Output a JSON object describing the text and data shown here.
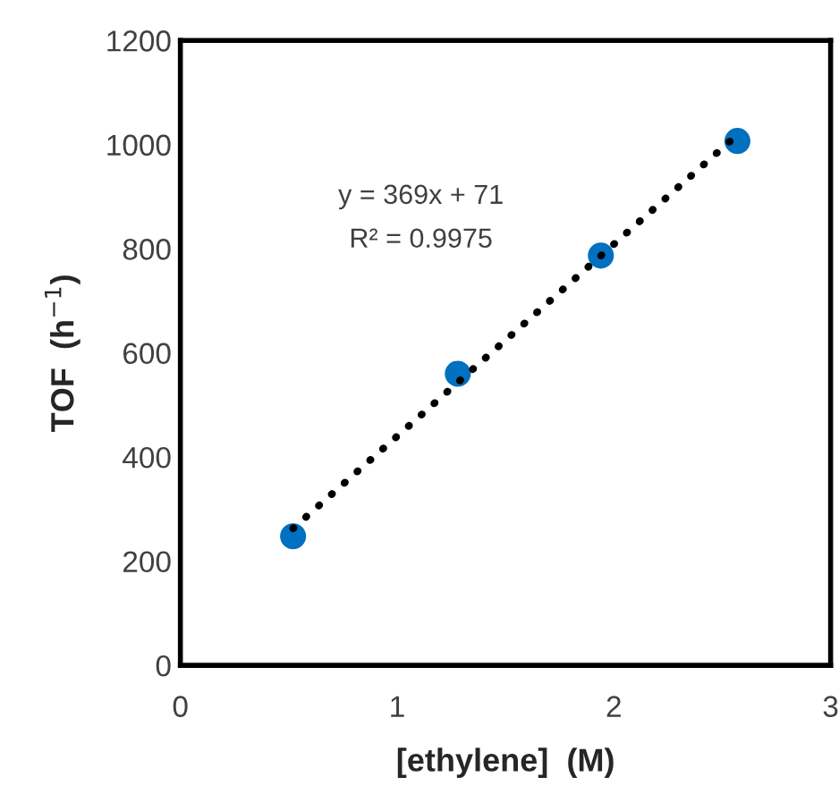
{
  "chart_data": {
    "type": "scatter",
    "xlabel": "[ethylene]  (M)",
    "ylabel": "TOF  (h$^{−1}$)",
    "xlim": [
      0,
      3
    ],
    "xticks": [
      0,
      1,
      2,
      3
    ],
    "ylim": [
      0,
      1200
    ],
    "yticks": [
      0,
      200,
      400,
      600,
      800,
      1000,
      1200
    ],
    "grid": false,
    "legend": false,
    "marker": "circle",
    "series": [
      {
        "color": "#0070c0",
        "x": [
          0.52,
          1.28,
          1.94,
          2.57
        ],
        "values": [
          248,
          560,
          787,
          1007
        ]
      },
      {
        "type": "line",
        "color": "#000000",
        "line_style": "dotted",
        "marker": "none",
        "x": [
          0.52,
          2.57
        ],
        "values": [
          263,
          1019
        ]
      }
    ],
    "annotations": [
      "y = 369x + 71",
      "R² = 0.9975"
    ]
  }
}
